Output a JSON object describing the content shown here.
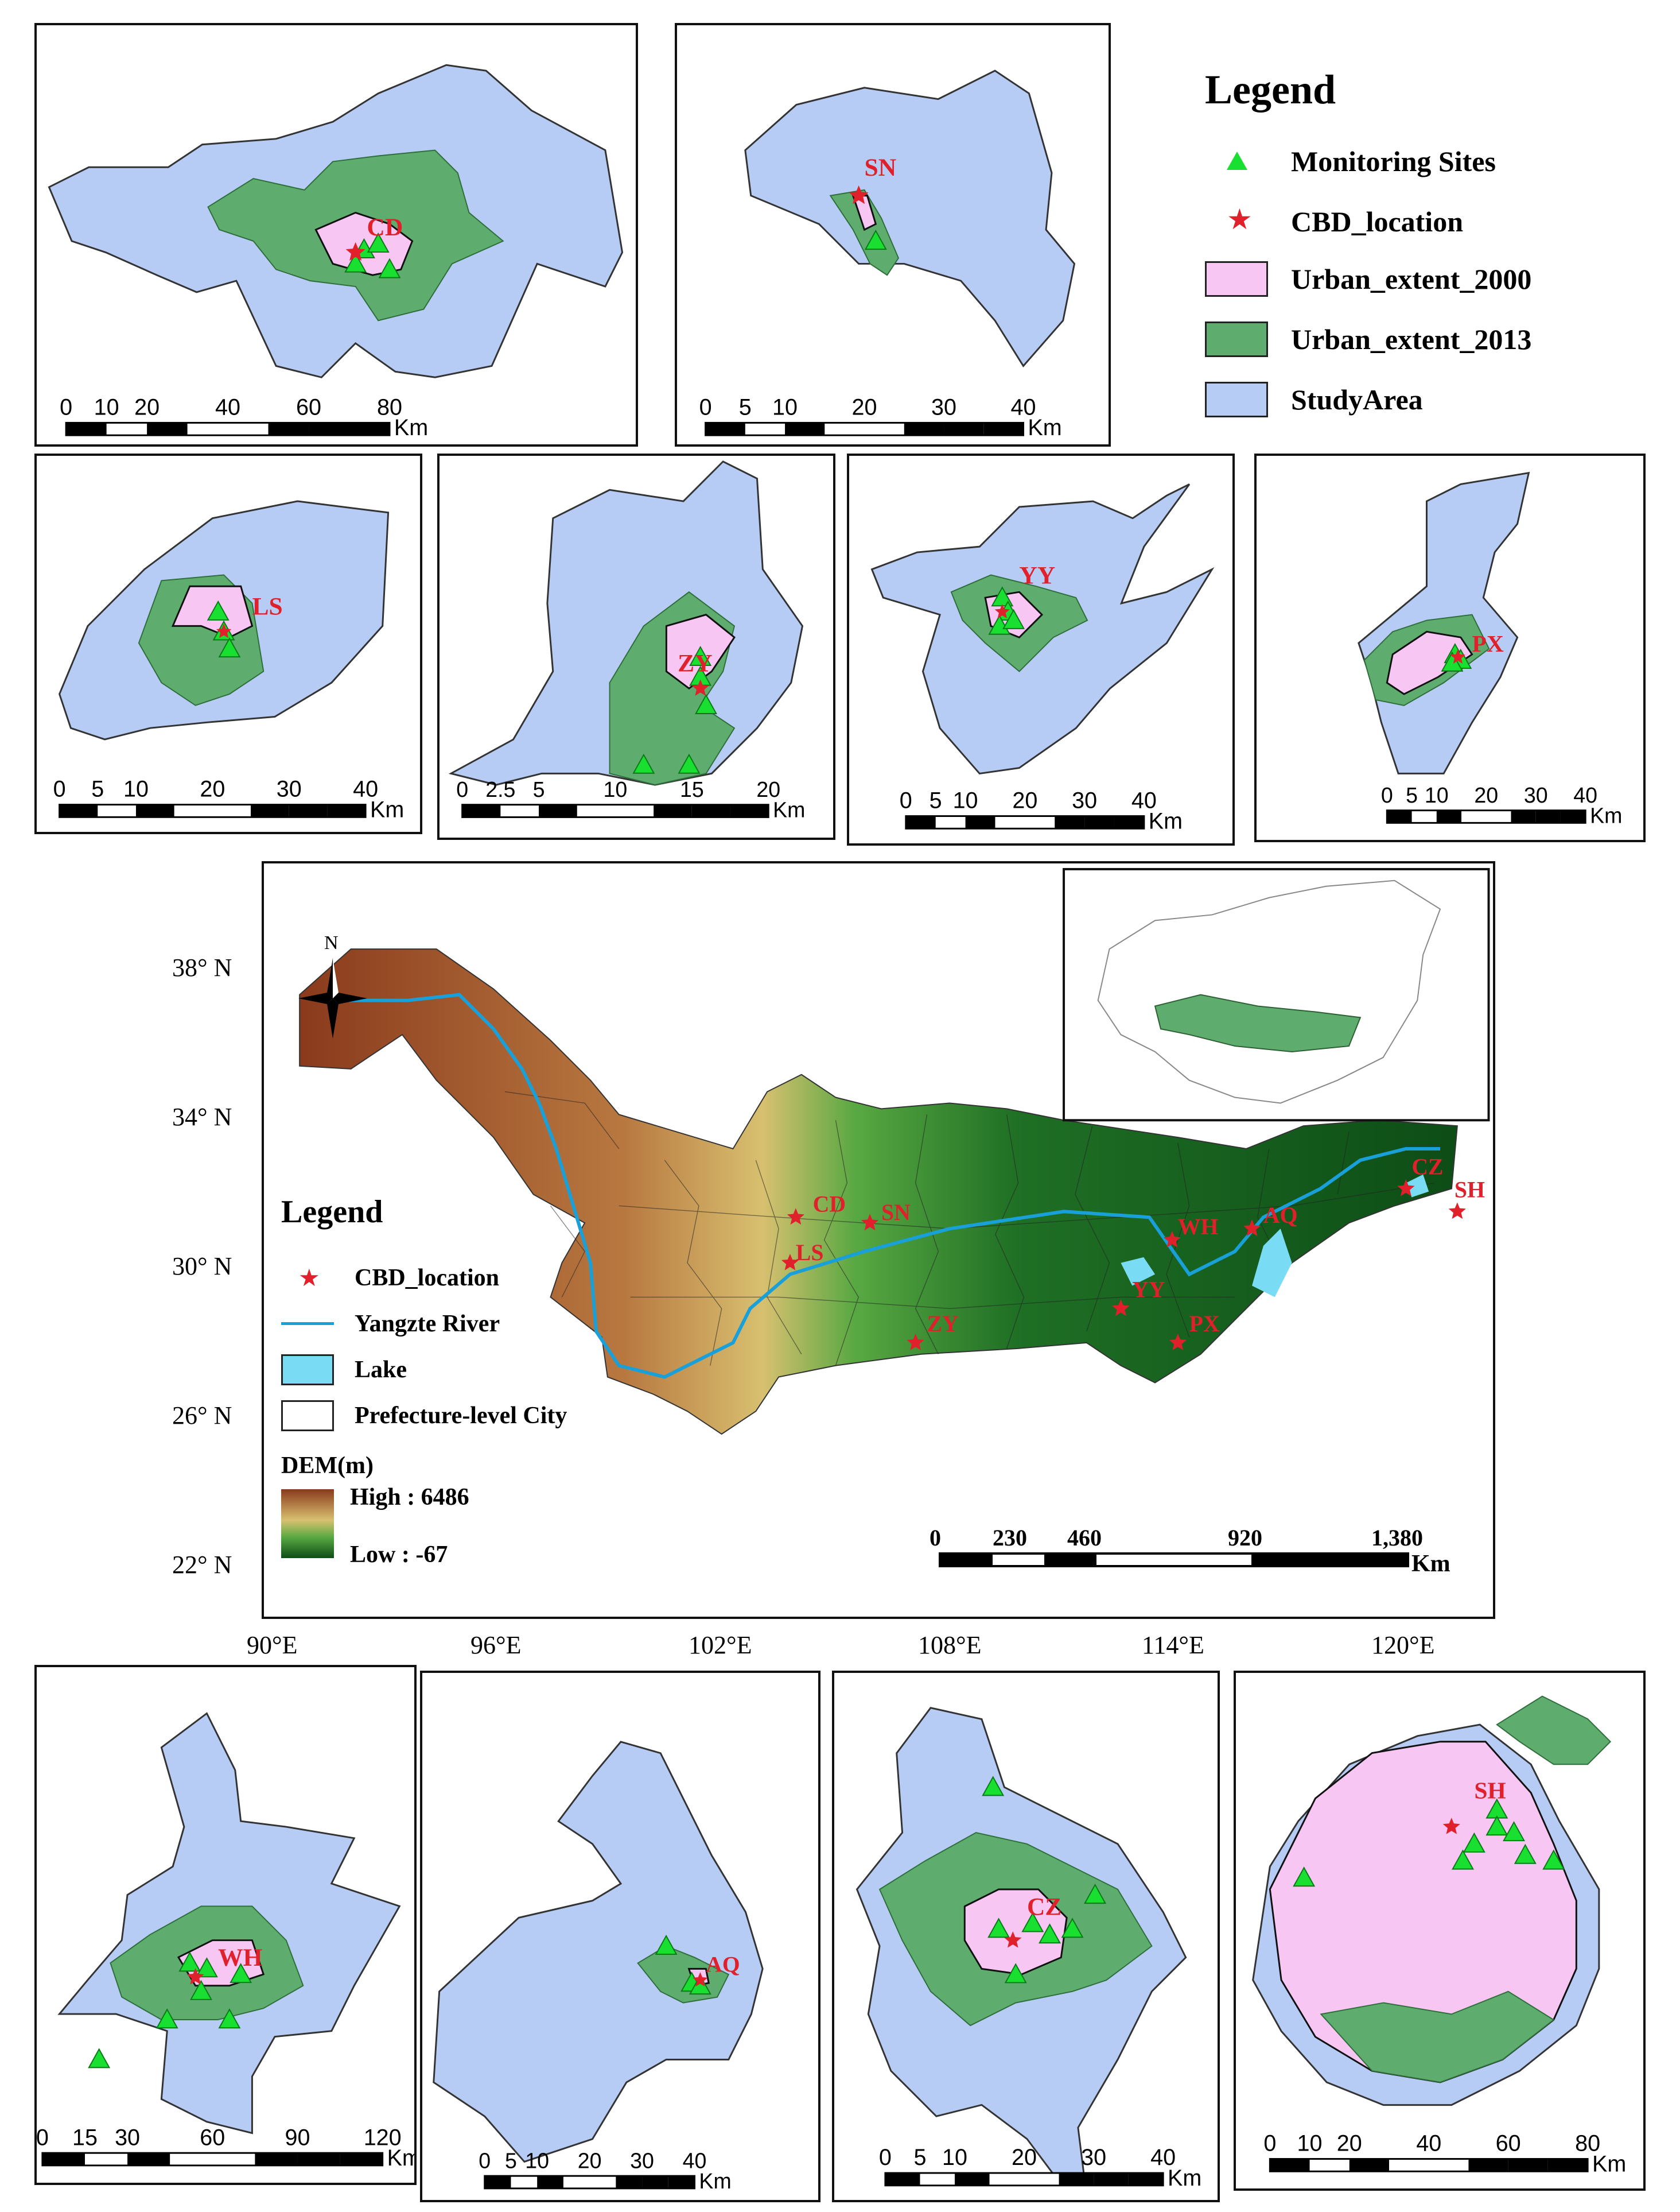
{
  "colors": {
    "study_area": "#b7ccf4",
    "urban_2000": "#f8c6f3",
    "urban_2013": "#5fad6e",
    "site": "#19e030",
    "cbd": "#e0202a",
    "river": "#1aa0d8",
    "lake": "#79dcf4"
  },
  "legend_top": {
    "title": "Legend",
    "items": [
      {
        "label": "Monitoring Sites",
        "symbol": "green-triangle-icon"
      },
      {
        "label": "CBD_location",
        "symbol": "red-star-icon"
      },
      {
        "label": "Urban_extent_2000",
        "symbol": "pink-swatch"
      },
      {
        "label": "Urban_extent_2013",
        "symbol": "green-swatch"
      },
      {
        "label": "StudyArea",
        "symbol": "blue-swatch"
      }
    ]
  },
  "cities": [
    {
      "code": "CD",
      "scale_ticks": [
        "0",
        "10",
        "20",
        "40",
        "60",
        "80"
      ],
      "unit": "Km"
    },
    {
      "code": "SN",
      "scale_ticks": [
        "0",
        "5",
        "10",
        "20",
        "30",
        "40"
      ],
      "unit": "Km"
    },
    {
      "code": "LS",
      "scale_ticks": [
        "0",
        "5",
        "10",
        "20",
        "30",
        "40"
      ],
      "unit": "Km"
    },
    {
      "code": "ZY",
      "scale_ticks": [
        "0",
        "2.5",
        "5",
        "10",
        "15",
        "20"
      ],
      "unit": "Km"
    },
    {
      "code": "YY",
      "scale_ticks": [
        "0",
        "5",
        "10",
        "20",
        "30",
        "40"
      ],
      "unit": "Km"
    },
    {
      "code": "PX",
      "scale_ticks": [
        "0",
        "5",
        "10",
        "20",
        "30",
        "40"
      ],
      "unit": "Km"
    },
    {
      "code": "WH",
      "scale_ticks": [
        "0",
        "15",
        "30",
        "60",
        "90",
        "120"
      ],
      "unit": "Km"
    },
    {
      "code": "AQ",
      "scale_ticks": [
        "0",
        "5",
        "10",
        "20",
        "30",
        "40"
      ],
      "unit": "Km"
    },
    {
      "code": "CZ",
      "scale_ticks": [
        "0",
        "5",
        "10",
        "20",
        "30",
        "40"
      ],
      "unit": "Km"
    },
    {
      "code": "SH",
      "scale_ticks": [
        "0",
        "10",
        "20",
        "40",
        "60",
        "80"
      ],
      "unit": "Km"
    }
  ],
  "main_map": {
    "north_label": "N",
    "lat_labels": [
      "38° N",
      "34° N",
      "30° N",
      "26° N",
      "22° N"
    ],
    "lon_labels": [
      "90°E",
      "96°E",
      "102°E",
      "108°E",
      "114°E",
      "120°E"
    ],
    "city_labels": [
      "CD",
      "SN",
      "LS",
      "ZY",
      "YY",
      "PX",
      "WH",
      "AQ",
      "CZ",
      "SH"
    ],
    "legend": {
      "title": "Legend",
      "items": [
        {
          "label": "CBD_location",
          "symbol": "red-star-icon"
        },
        {
          "label": "Yangzte River",
          "symbol": "river-line"
        },
        {
          "label": "Lake",
          "symbol": "lake-swatch"
        },
        {
          "label": "Prefecture-level City",
          "symbol": "outline-swatch"
        }
      ],
      "dem_title": "DEM(m)",
      "dem_high": "High : 6486",
      "dem_low": "Low : -67"
    },
    "scale_ticks": [
      "0",
      "230",
      "460",
      "920",
      "1,380"
    ],
    "unit": "Km"
  }
}
